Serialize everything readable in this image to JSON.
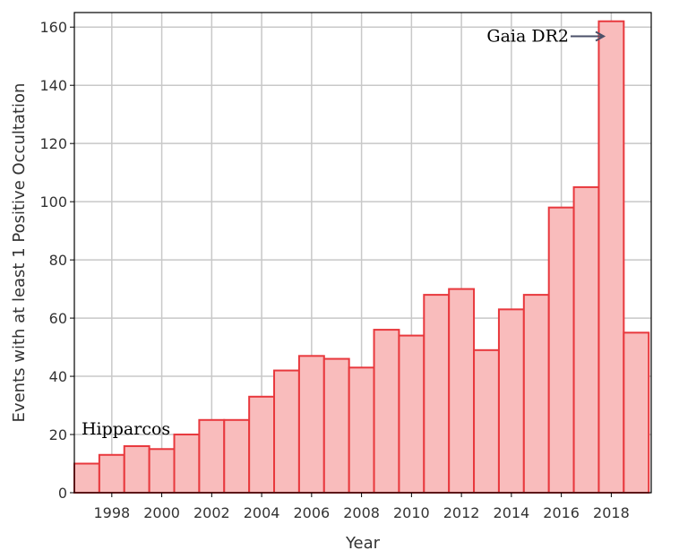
{
  "chart_data": {
    "type": "bar",
    "title": "",
    "xlabel": "Year",
    "ylabel": "Events with at least 1 Positive Occultation",
    "x": [
      1997,
      1998,
      1999,
      2000,
      2001,
      2002,
      2003,
      2004,
      2005,
      2006,
      2007,
      2008,
      2009,
      2010,
      2011,
      2012,
      2013,
      2014,
      2015,
      2016,
      2017,
      2018,
      2019
    ],
    "values": [
      10,
      13,
      16,
      15,
      20,
      25,
      25,
      33,
      42,
      47,
      46,
      43,
      56,
      54,
      68,
      70,
      49,
      63,
      68,
      98,
      105,
      162,
      55
    ],
    "ylim": [
      0,
      165
    ],
    "xlim": [
      1996.5,
      2019.6
    ],
    "yticks": [
      "0",
      "20",
      "40",
      "60",
      "80",
      "100",
      "120",
      "140",
      "160"
    ],
    "xticks": [
      "1998",
      "2000",
      "2002",
      "2004",
      "2006",
      "2008",
      "2010",
      "2012",
      "2014",
      "2016",
      "2018"
    ],
    "grid": true,
    "colors": {
      "bar_fill": "#f9bcbc",
      "bar_stroke": "#e8383d",
      "grid": "#c8c8c8",
      "arrow": "#4a5068"
    },
    "annotations": [
      {
        "text": "Hipparcos",
        "x": 1997,
        "y": 20
      },
      {
        "text": "Gaia DR2",
        "x": 2016.3,
        "y": 155,
        "arrow_to_x": 2017.7
      }
    ]
  }
}
